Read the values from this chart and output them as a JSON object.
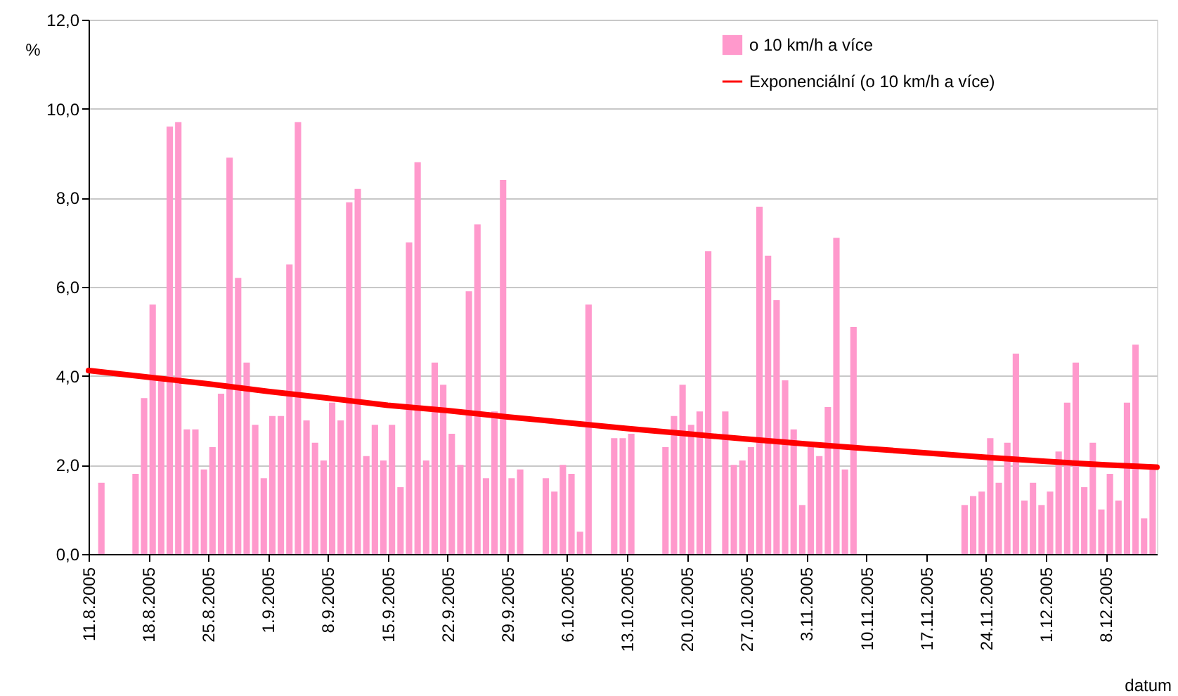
{
  "chart_data": {
    "type": "bar",
    "ylabel": "%",
    "xlabel": "datum",
    "legend": "top right",
    "grid": "y",
    "xlim": [
      "2005-08-11",
      "2005-12-14"
    ],
    "xticks": [
      {
        "value": "2005-08-11",
        "label": "11.8.2005"
      },
      {
        "value": "2005-08-18",
        "label": "18.8.2005"
      },
      {
        "value": "2005-08-25",
        "label": "25.8.2005"
      },
      {
        "value": "2005-09-01",
        "label": "1.9.2005"
      },
      {
        "value": "2005-09-08",
        "label": "8.9.2005"
      },
      {
        "value": "2005-09-15",
        "label": "15.9.2005"
      },
      {
        "value": "2005-09-22",
        "label": "22.9.2005"
      },
      {
        "value": "2005-09-29",
        "label": "29.9.2005"
      },
      {
        "value": "2005-10-06",
        "label": "6.10.2005"
      },
      {
        "value": "2005-10-13",
        "label": "13.10.2005"
      },
      {
        "value": "2005-10-20",
        "label": "20.10.2005"
      },
      {
        "value": "2005-10-27",
        "label": "27.10.2005"
      },
      {
        "value": "2005-11-03",
        "label": "3.11.2005"
      },
      {
        "value": "2005-11-10",
        "label": "10.11.2005"
      },
      {
        "value": "2005-11-17",
        "label": "17.11.2005"
      },
      {
        "value": "2005-11-24",
        "label": "24.11.2005"
      },
      {
        "value": "2005-12-01",
        "label": "1.12.2005"
      },
      {
        "value": "2005-12-08",
        "label": "8.12.2005"
      }
    ],
    "ylim": [
      0,
      12
    ],
    "yticks": [
      {
        "value": 0,
        "label": "0,0"
      },
      {
        "value": 2,
        "label": "2,0"
      },
      {
        "value": 4,
        "label": "4,0"
      },
      {
        "value": 6,
        "label": "6,0"
      },
      {
        "value": 8,
        "label": "8,0"
      },
      {
        "value": 10,
        "label": "10,0"
      },
      {
        "value": 12,
        "label": "12,0"
      }
    ],
    "x": [
      "2005-08-12",
      "2005-08-16",
      "2005-08-17",
      "2005-08-18",
      "2005-08-19",
      "2005-08-20",
      "2005-08-21",
      "2005-08-22",
      "2005-08-23",
      "2005-08-24",
      "2005-08-25",
      "2005-08-26",
      "2005-08-27",
      "2005-08-28",
      "2005-08-29",
      "2005-08-30",
      "2005-08-31",
      "2005-09-01",
      "2005-09-02",
      "2005-09-03",
      "2005-09-04",
      "2005-09-05",
      "2005-09-06",
      "2005-09-07",
      "2005-09-08",
      "2005-09-09",
      "2005-09-10",
      "2005-09-11",
      "2005-09-12",
      "2005-09-13",
      "2005-09-14",
      "2005-09-15",
      "2005-09-16",
      "2005-09-17",
      "2005-09-18",
      "2005-09-19",
      "2005-09-20",
      "2005-09-21",
      "2005-09-22",
      "2005-09-23",
      "2005-09-24",
      "2005-09-25",
      "2005-09-26",
      "2005-09-27",
      "2005-09-28",
      "2005-09-29",
      "2005-09-30",
      "2005-10-03",
      "2005-10-04",
      "2005-10-05",
      "2005-10-06",
      "2005-10-07",
      "2005-10-08",
      "2005-10-11",
      "2005-10-12",
      "2005-10-13",
      "2005-10-17",
      "2005-10-18",
      "2005-10-19",
      "2005-10-20",
      "2005-10-21",
      "2005-10-22",
      "2005-10-24",
      "2005-10-25",
      "2005-10-26",
      "2005-10-27",
      "2005-10-28",
      "2005-10-29",
      "2005-10-30",
      "2005-10-31",
      "2005-11-01",
      "2005-11-02",
      "2005-11-03",
      "2005-11-04",
      "2005-11-05",
      "2005-11-06",
      "2005-11-07",
      "2005-11-08",
      "2005-11-21",
      "2005-11-22",
      "2005-11-23",
      "2005-11-24",
      "2005-11-25",
      "2005-11-26",
      "2005-11-27",
      "2005-11-28",
      "2005-11-29",
      "2005-11-30",
      "2005-12-01",
      "2005-12-02",
      "2005-12-03",
      "2005-12-04",
      "2005-12-05",
      "2005-12-06",
      "2005-12-07",
      "2005-12-08",
      "2005-12-09",
      "2005-12-10",
      "2005-12-11",
      "2005-12-12",
      "2005-12-13"
    ],
    "series": [
      {
        "name": "o 10 km/h a více",
        "color": "#ff99cc",
        "values": [
          1.6,
          1.8,
          3.5,
          5.6,
          3.9,
          9.6,
          9.7,
          2.8,
          2.8,
          1.9,
          2.4,
          3.6,
          8.9,
          6.2,
          4.3,
          2.9,
          1.7,
          3.1,
          3.1,
          6.5,
          9.7,
          3.0,
          2.5,
          2.1,
          3.4,
          3.0,
          7.9,
          8.2,
          2.2,
          2.9,
          2.1,
          2.9,
          1.5,
          7.0,
          8.8,
          2.1,
          4.3,
          3.8,
          2.7,
          2.0,
          5.9,
          7.4,
          1.7,
          3.2,
          8.4,
          1.7,
          1.9,
          1.7,
          1.4,
          2.0,
          1.8,
          0.5,
          5.6,
          2.6,
          2.6,
          2.7,
          2.4,
          3.1,
          3.8,
          2.9,
          3.2,
          6.8,
          3.2,
          2.0,
          2.1,
          2.4,
          7.8,
          6.7,
          5.7,
          3.9,
          2.8,
          1.1,
          2.4,
          2.2,
          3.3,
          7.1,
          1.9,
          5.1,
          1.1,
          1.3,
          1.4,
          2.6,
          1.6,
          2.5,
          4.5,
          1.2,
          1.6,
          1.1,
          1.4,
          2.3,
          3.4,
          4.3,
          1.5,
          2.5,
          1.0,
          1.8,
          1.2,
          3.4,
          4.7,
          0.8,
          1.9
        ]
      },
      {
        "name": "Exponenciální (o 10 km/h a více)",
        "type": "line",
        "color": "#ff0000",
        "x": [
          "2005-08-11",
          "2005-08-18",
          "2005-08-25",
          "2005-09-01",
          "2005-09-08",
          "2005-09-15",
          "2005-09-22",
          "2005-09-29",
          "2005-10-06",
          "2005-10-13",
          "2005-10-20",
          "2005-10-27",
          "2005-11-03",
          "2005-11-10",
          "2005-11-17",
          "2005-11-24",
          "2005-12-01",
          "2005-12-08",
          "2005-12-14"
        ],
        "values": [
          4.12,
          3.97,
          3.82,
          3.65,
          3.5,
          3.34,
          3.22,
          3.08,
          2.95,
          2.82,
          2.7,
          2.58,
          2.47,
          2.37,
          2.27,
          2.17,
          2.08,
          2.0,
          1.95
        ]
      }
    ]
  }
}
